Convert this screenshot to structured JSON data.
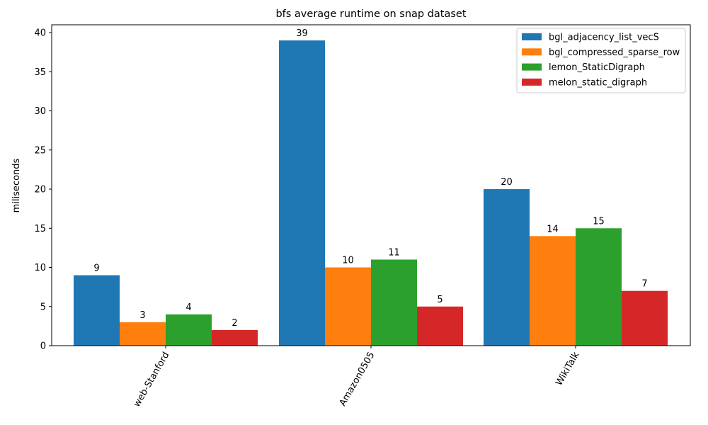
{
  "chart_data": {
    "type": "bar",
    "title": "bfs average runtime on snap dataset",
    "xlabel": "",
    "ylabel": "miliseconds",
    "categories": [
      "web-Stanford",
      "Amazon0505",
      "WikiTalk"
    ],
    "ylim": [
      0,
      41
    ],
    "yticks": [
      "0",
      "5",
      "10",
      "15",
      "20",
      "25",
      "30",
      "35",
      "40"
    ],
    "grid": false,
    "legend_position": "top-right",
    "series": [
      {
        "name": "bgl_adjacency_list_vecS",
        "color": "#1f77b4",
        "values": [
          9,
          39,
          20
        ]
      },
      {
        "name": "bgl_compressed_sparse_row",
        "color": "#ff7f0e",
        "values": [
          3,
          10,
          14
        ]
      },
      {
        "name": "lemon_StaticDigraph",
        "color": "#2ca02c",
        "values": [
          4,
          11,
          15
        ]
      },
      {
        "name": "melon_static_digraph",
        "color": "#d62728",
        "values": [
          2,
          5,
          7
        ]
      }
    ]
  }
}
